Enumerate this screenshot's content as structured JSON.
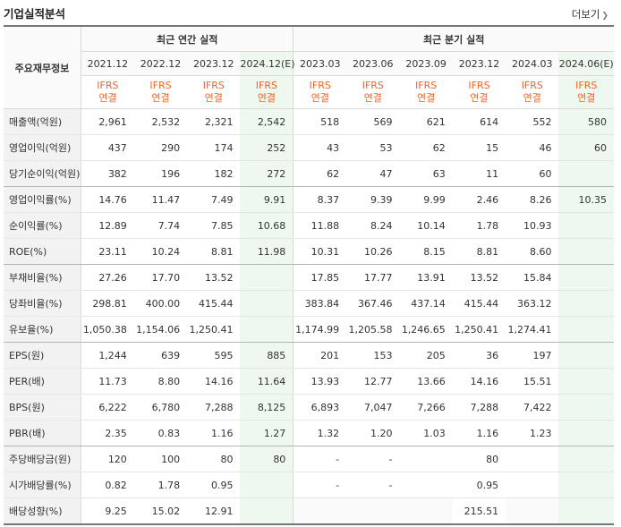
{
  "header": {
    "title": "기업실적분석",
    "more_label": "더보기"
  },
  "table": {
    "item_header": "주요재무정보",
    "group_annual": "최근 연간 실적",
    "group_quarterly": "최근 분기 실적",
    "periods": [
      "2021.12",
      "2022.12",
      "2023.12",
      "2024.12(E)",
      "2023.03",
      "2023.06",
      "2023.09",
      "2023.12",
      "2024.03",
      "2024.06(E)"
    ],
    "ifrs_top": "IFRS",
    "ifrs_bottom": "연결",
    "rows": [
      {
        "label": "매출액(억원)",
        "values": [
          "2,961",
          "2,532",
          "2,321",
          "2,542",
          "518",
          "569",
          "621",
          "614",
          "552",
          "580"
        ]
      },
      {
        "label": "영업이익(억원)",
        "values": [
          "437",
          "290",
          "174",
          "252",
          "43",
          "53",
          "62",
          "15",
          "46",
          "60"
        ]
      },
      {
        "label": "당기순이익(억원)",
        "values": [
          "382",
          "196",
          "182",
          "272",
          "62",
          "47",
          "63",
          "11",
          "60",
          ""
        ]
      },
      {
        "label": "영업이익률(%)",
        "values": [
          "14.76",
          "11.47",
          "7.49",
          "9.91",
          "8.37",
          "9.39",
          "9.99",
          "2.46",
          "8.26",
          "10.35"
        ]
      },
      {
        "label": "순이익률(%)",
        "values": [
          "12.89",
          "7.74",
          "7.85",
          "10.68",
          "11.88",
          "8.24",
          "10.14",
          "1.78",
          "10.93",
          ""
        ]
      },
      {
        "label": "ROE(%)",
        "values": [
          "23.11",
          "10.24",
          "8.81",
          "11.98",
          "10.31",
          "10.26",
          "8.15",
          "8.81",
          "8.60",
          ""
        ]
      },
      {
        "label": "부채비율(%)",
        "values": [
          "27.26",
          "17.70",
          "13.52",
          "",
          "17.85",
          "17.77",
          "13.91",
          "13.52",
          "15.84",
          ""
        ]
      },
      {
        "label": "당좌비율(%)",
        "values": [
          "298.81",
          "400.00",
          "415.44",
          "",
          "383.84",
          "367.46",
          "437.14",
          "415.44",
          "363.12",
          ""
        ]
      },
      {
        "label": "유보율(%)",
        "values": [
          "1,050.38",
          "1,154.06",
          "1,250.41",
          "",
          "1,174.99",
          "1,205.58",
          "1,246.65",
          "1,250.41",
          "1,274.41",
          ""
        ]
      },
      {
        "label": "EPS(원)",
        "values": [
          "1,244",
          "639",
          "595",
          "885",
          "201",
          "153",
          "205",
          "36",
          "197",
          ""
        ]
      },
      {
        "label": "PER(배)",
        "values": [
          "11.73",
          "8.80",
          "14.16",
          "11.64",
          "13.93",
          "12.77",
          "13.66",
          "14.16",
          "15.51",
          ""
        ]
      },
      {
        "label": "BPS(원)",
        "values": [
          "6,222",
          "6,780",
          "7,288",
          "8,125",
          "6,893",
          "7,047",
          "7,266",
          "7,288",
          "7,422",
          ""
        ]
      },
      {
        "label": "PBR(배)",
        "values": [
          "2.35",
          "0.83",
          "1.16",
          "1.27",
          "1.32",
          "1.20",
          "1.03",
          "1.16",
          "1.23",
          ""
        ]
      },
      {
        "label": "주당배당금(원)",
        "values": [
          "120",
          "100",
          "80",
          "80",
          "-",
          "-",
          "",
          "80",
          "",
          ""
        ]
      },
      {
        "label": "시가배당률(%)",
        "values": [
          "0.82",
          "1.78",
          "0.95",
          "",
          "-",
          "-",
          "",
          "0.95",
          "",
          ""
        ]
      },
      {
        "label": "배당성향(%)",
        "values": [
          "9.25",
          "15.02",
          "12.91",
          "",
          "",
          "",
          "",
          "215.51",
          "",
          ""
        ]
      }
    ]
  },
  "colors": {
    "ifrs": "#f26522",
    "estimate_bg": "#eef8ee",
    "label_bg": "#f2f2f2"
  }
}
